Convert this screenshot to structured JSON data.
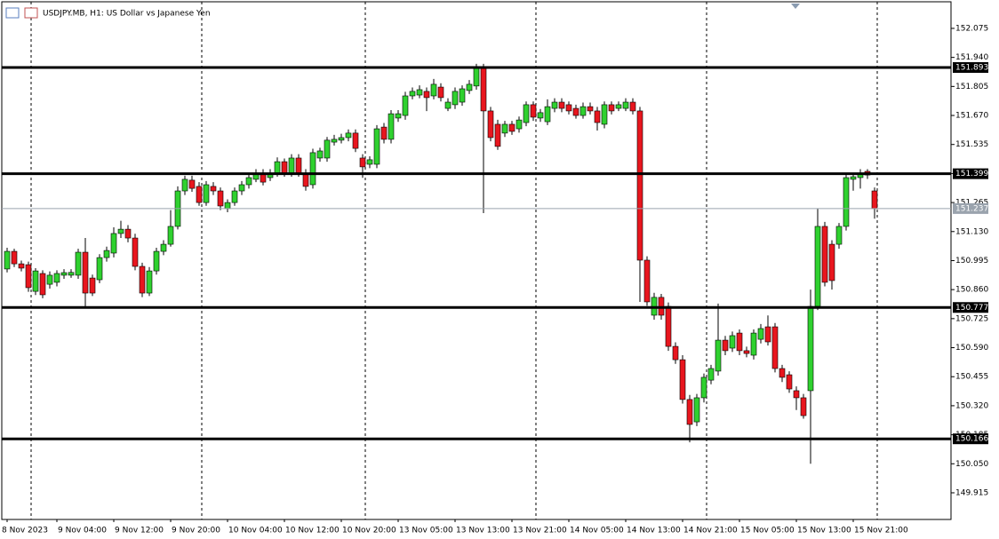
{
  "chart_data": {
    "type": "candlestick",
    "title": "USDJPY.MB, H1:  US Dollar vs Japanese Yen",
    "categories": [
      "8 Nov 2023",
      null,
      null,
      null,
      null,
      null,
      null,
      "9 Nov 04:00",
      null,
      null,
      null,
      null,
      null,
      null,
      null,
      "9 Nov 12:00",
      null,
      null,
      null,
      null,
      null,
      null,
      null,
      "9 Nov 20:00",
      null,
      null,
      null,
      null,
      null,
      null,
      null,
      "10 Nov 04:00",
      null,
      null,
      null,
      null,
      null,
      null,
      null,
      "10 Nov 12:00",
      null,
      null,
      null,
      null,
      null,
      null,
      null,
      "10 Nov 20:00",
      null,
      null,
      null,
      null,
      null,
      null,
      null,
      "13 Nov 05:00",
      null,
      null,
      null,
      null,
      null,
      null,
      null,
      "13 Nov 13:00",
      null,
      null,
      null,
      null,
      null,
      null,
      null,
      "13 Nov 21:00",
      null,
      null,
      null,
      null,
      null,
      null,
      null,
      "14 Nov 05:00",
      null,
      null,
      null,
      null,
      null,
      null,
      null,
      "14 Nov 13:00",
      null,
      null,
      null,
      null,
      null,
      null,
      null,
      "14 Nov 21:00",
      null,
      null,
      null,
      null,
      null,
      null,
      null,
      "15 Nov 05:00",
      null,
      null,
      null,
      null,
      null,
      null,
      null,
      "15 Nov 13:00",
      null,
      null,
      null,
      null,
      null,
      null,
      null,
      "15 Nov 21:00",
      null,
      null,
      null
    ],
    "open": [
      150.956,
      151.038,
      150.98,
      150.976,
      150.852,
      150.935,
      150.885,
      150.894,
      150.927,
      150.927,
      150.927,
      151.034,
      150.914,
      150.906,
      151.009,
      151.03,
      151.121,
      151.141,
      151.1,
      150.968,
      150.844,
      150.947,
      151.038,
      151.071,
      151.154,
      151.319,
      151.369,
      151.34,
      151.265,
      151.34,
      151.319,
      151.237,
      151.265,
      151.319,
      151.348,
      151.373,
      151.398,
      151.381,
      151.402,
      151.455,
      151.402,
      151.472,
      151.402,
      151.348,
      151.472,
      151.472,
      151.546,
      151.555,
      151.567,
      151.588,
      151.472,
      151.443,
      151.443,
      151.616,
      151.559,
      151.658,
      151.67,
      151.761,
      151.765,
      151.782,
      151.761,
      151.802,
      151.703,
      151.72,
      151.732,
      151.786,
      151.807,
      151.889,
      151.691,
      151.629,
      151.588,
      151.629,
      151.608,
      151.637,
      151.72,
      151.658,
      151.641,
      151.703,
      151.732,
      151.72,
      151.703,
      151.67,
      151.711,
      151.691,
      151.629,
      151.72,
      151.703,
      151.703,
      151.732,
      151.691,
      150.997,
      150.741,
      150.824,
      150.782,
      150.596,
      150.534,
      150.349,
      150.245,
      150.357,
      150.439,
      150.481,
      150.625,
      150.588,
      150.658,
      150.576,
      150.555,
      150.629,
      150.687,
      150.687,
      150.493,
      150.464,
      150.39,
      150.357,
      150.39,
      150.782,
      151.154,
      151.071,
      151.071,
      151.154,
      151.373,
      151.381,
      151.41,
      151.319
    ],
    "high": [
      151.055,
      151.05,
      150.995,
      150.99,
      150.96,
      150.95,
      150.945,
      150.95,
      150.955,
      150.955,
      151.05,
      151.1,
      150.93,
      151.025,
      151.06,
      151.15,
      151.18,
      151.16,
      151.12,
      150.985,
      150.965,
      151.055,
      151.09,
      151.23,
      151.34,
      151.39,
      151.39,
      151.36,
      151.365,
      151.36,
      151.335,
      151.28,
      151.335,
      151.365,
      151.4,
      151.42,
      151.42,
      151.42,
      151.475,
      151.47,
      151.49,
      151.49,
      151.42,
      151.515,
      151.52,
      151.57,
      151.58,
      151.585,
      151.605,
      151.605,
      151.49,
      151.48,
      151.625,
      151.635,
      151.695,
      151.695,
      151.78,
      151.8,
      151.81,
      151.8,
      151.84,
      151.82,
      151.75,
      151.8,
      151.81,
      151.835,
      151.91,
      151.91,
      151.71,
      151.65,
      151.645,
      151.645,
      151.665,
      151.735,
      151.735,
      151.7,
      151.745,
      151.75,
      151.75,
      151.735,
      151.72,
      151.73,
      151.73,
      151.71,
      151.735,
      151.735,
      151.735,
      151.75,
      151.75,
      151.71,
      151.015,
      150.845,
      150.84,
      150.8,
      150.615,
      150.555,
      150.37,
      150.375,
      150.47,
      150.51,
      150.795,
      150.645,
      150.665,
      150.675,
      150.595,
      150.675,
      150.7,
      150.74,
      150.705,
      150.51,
      150.48,
      150.41,
      150.375,
      150.86,
      151.237,
      151.175,
      151.09,
      151.17,
      151.4,
      151.4,
      151.42,
      151.42,
      151.335
    ],
    "low": [
      150.94,
      150.965,
      150.945,
      150.85,
      150.835,
      150.82,
      150.865,
      150.875,
      150.91,
      150.915,
      150.91,
      150.78,
      150.83,
      150.89,
      150.99,
      151.01,
      151.1,
      151.08,
      150.95,
      150.825,
      150.83,
      150.93,
      151.02,
      151.06,
      151.14,
      151.3,
      151.315,
      151.25,
      151.25,
      151.3,
      151.23,
      151.22,
      151.25,
      151.3,
      151.33,
      151.36,
      151.345,
      151.365,
      151.385,
      151.385,
      151.385,
      151.385,
      151.32,
      151.33,
      151.455,
      151.455,
      151.53,
      151.54,
      151.55,
      151.5,
      151.38,
      151.425,
      151.425,
      151.54,
      151.54,
      151.64,
      151.65,
      151.745,
      151.75,
      151.69,
      151.745,
      151.735,
      151.69,
      151.7,
      151.715,
      151.77,
      151.79,
      151.216,
      151.55,
      151.51,
      151.57,
      151.58,
      151.59,
      151.62,
      151.645,
      151.64,
      151.625,
      151.685,
      151.685,
      151.675,
      151.655,
      151.655,
      151.675,
      151.6,
      151.61,
      151.675,
      151.69,
      151.69,
      151.675,
      150.803,
      150.785,
      150.72,
      150.72,
      150.575,
      150.515,
      150.33,
      150.15,
      150.225,
      150.335,
      150.42,
      150.46,
      150.555,
      150.57,
      150.555,
      150.545,
      150.535,
      150.61,
      150.6,
      150.475,
      150.43,
      150.38,
      150.3,
      150.26,
      150.05,
      150.765,
      150.875,
      150.86,
      151.05,
      151.135,
      151.32,
      151.33,
      151.375,
      151.19
    ],
    "close": [
      151.038,
      150.98,
      150.96,
      150.869,
      150.947,
      150.836,
      150.927,
      150.935,
      150.939,
      150.94,
      151.034,
      150.844,
      150.844,
      151.009,
      151.042,
      151.121,
      151.141,
      151.1,
      150.968,
      150.844,
      150.947,
      151.038,
      151.071,
      151.154,
      151.319,
      151.373,
      151.331,
      151.265,
      151.348,
      151.319,
      151.249,
      151.265,
      151.319,
      151.348,
      151.381,
      151.398,
      151.36,
      151.402,
      151.455,
      151.402,
      151.472,
      151.402,
      151.34,
      151.497,
      151.505,
      151.555,
      151.559,
      151.567,
      151.588,
      151.517,
      151.431,
      151.464,
      151.608,
      151.559,
      151.678,
      151.678,
      151.761,
      151.782,
      151.79,
      151.753,
      151.815,
      151.753,
      151.732,
      151.782,
      151.794,
      151.815,
      151.889,
      151.691,
      151.567,
      151.526,
      151.629,
      151.596,
      151.649,
      151.72,
      151.662,
      151.683,
      151.711,
      151.732,
      151.703,
      151.691,
      151.67,
      151.711,
      151.691,
      151.637,
      151.72,
      151.691,
      151.72,
      151.732,
      151.691,
      150.997,
      150.803,
      150.824,
      150.741,
      150.596,
      150.534,
      150.349,
      150.233,
      150.357,
      150.452,
      150.493,
      150.625,
      150.576,
      150.646,
      150.576,
      150.563,
      150.658,
      150.679,
      150.617,
      150.493,
      150.452,
      150.398,
      150.357,
      150.274,
      150.782,
      151.154,
      150.894,
      150.902,
      151.154,
      151.381,
      151.385,
      151.402,
      151.393,
      151.237
    ],
    "up_color": "#2fd12f",
    "down_color": "#e8161e",
    "ylim": [
      149.791,
      152.207
    ],
    "yticks": [
      152.075,
      {
        "value": 151.94,
        "label": "151.940"
      },
      151.805,
      {
        "value": 151.67,
        "label": "151.670"
      },
      151.535,
      {
        "value": 151.4,
        "label": "151.400"
      },
      151.265,
      {
        "value": 151.13,
        "label": "151.130"
      },
      150.995,
      {
        "value": 150.86,
        "label": "150.860"
      },
      150.725,
      {
        "value": 150.59,
        "label": "150.590"
      },
      150.455,
      {
        "value": 150.32,
        "label": "150.320"
      },
      150.185,
      {
        "value": 150.05,
        "label": "150.050"
      },
      149.915
    ],
    "levels": [
      151.893,
      151.399,
      150.777,
      150.166
    ],
    "current_price": 151.237
  }
}
